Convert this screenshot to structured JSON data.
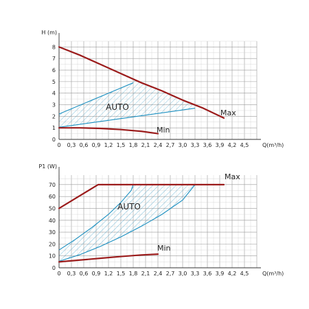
{
  "chart_data": [
    {
      "type": "line",
      "ylabel": "H (m)",
      "xlabel": "Q(m³/h)",
      "xlim": [
        0,
        4.8
      ],
      "ylim": [
        0,
        8.5
      ],
      "x_ticks": [
        "0",
        "0,3",
        "0,6",
        "0,9",
        "1,2",
        "1,5",
        "1,8",
        "2,1",
        "2,4",
        "2,7",
        "3,0",
        "3,3",
        "3,6",
        "3,9",
        "4,2",
        "4,5"
      ],
      "y_ticks": [
        "0",
        "1",
        "2",
        "3",
        "4",
        "5",
        "6",
        "7",
        "8"
      ],
      "grid": true,
      "series": [
        {
          "name": "Max",
          "color": "#9b1b1b",
          "x": [
            0,
            0.5,
            1.0,
            1.5,
            2.0,
            2.5,
            3.0,
            3.5,
            4.0
          ],
          "y": [
            8.0,
            7.3,
            6.5,
            5.7,
            4.9,
            4.2,
            3.4,
            2.7,
            1.85
          ]
        },
        {
          "name": "Min",
          "color": "#9b1b1b",
          "x": [
            0,
            0.5,
            1.0,
            1.5,
            2.0,
            2.4
          ],
          "y": [
            1.0,
            1.0,
            0.95,
            0.85,
            0.7,
            0.5
          ]
        }
      ],
      "auto_region": {
        "label": "AUTO",
        "color": "#1a8fc0",
        "upper": {
          "x": [
            0,
            1.8
          ],
          "y": [
            2.2,
            4.9
          ]
        },
        "lower": {
          "x": [
            0,
            3.3
          ],
          "y": [
            1.05,
            2.7
          ]
        }
      }
    },
    {
      "type": "line",
      "ylabel": "P1 (W)",
      "xlabel": "Q(m³/h)",
      "xlim": [
        0,
        4.8
      ],
      "ylim": [
        0,
        78
      ],
      "x_ticks": [
        "0",
        "0,3",
        "0,6",
        "0,9",
        "1,2",
        "1,5",
        "1,8",
        "2,1",
        "2,4",
        "2,7",
        "3,0",
        "3,3",
        "3,6",
        "3,9",
        "4,2",
        "4,5"
      ],
      "y_ticks": [
        "0",
        "10",
        "20",
        "30",
        "40",
        "50",
        "60",
        "70"
      ],
      "grid": true,
      "series": [
        {
          "name": "Max",
          "color": "#9b1b1b",
          "x": [
            0,
            0.95,
            4.0
          ],
          "y": [
            50,
            70,
            70
          ]
        },
        {
          "name": "Min",
          "color": "#9b1b1b",
          "x": [
            0,
            0.5,
            1.0,
            1.5,
            2.0,
            2.4
          ],
          "y": [
            5,
            6.5,
            8,
            9.5,
            10.8,
            11.5
          ]
        }
      ],
      "auto_region": {
        "label": "AUTO",
        "color": "#1a8fc0",
        "upper": {
          "x": [
            0,
            0.4,
            0.8,
            1.2,
            1.5,
            1.75,
            1.8
          ],
          "y": [
            15,
            24,
            34,
            45,
            55,
            65,
            70
          ]
        },
        "lower": {
          "x": [
            0,
            0.5,
            1.0,
            1.5,
            2.0,
            2.5,
            3.0,
            3.3
          ],
          "y": [
            5.5,
            11,
            18,
            26,
            35,
            45,
            57,
            70
          ]
        }
      }
    }
  ]
}
